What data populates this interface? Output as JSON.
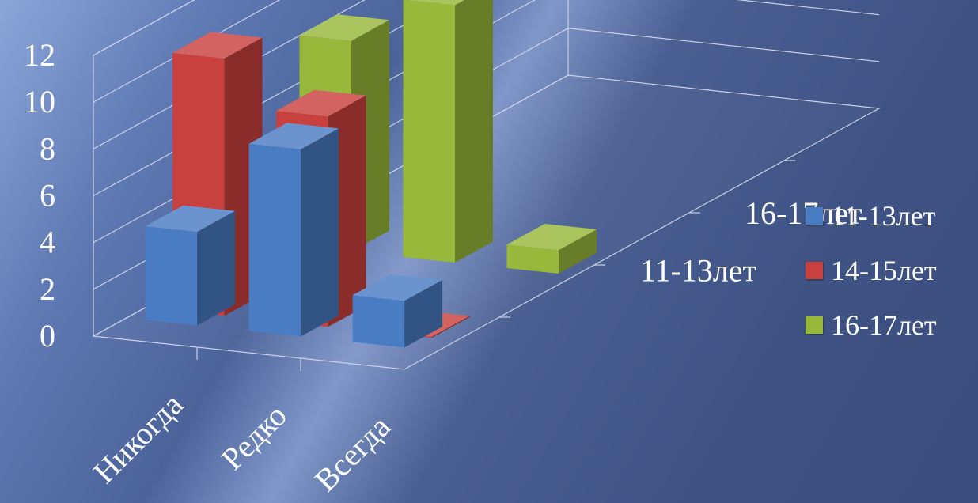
{
  "chart_data": {
    "type": "bar",
    "subtype": "3d-clustered-column",
    "categories": [
      "Никогда",
      "Редко",
      "Всегда"
    ],
    "series": [
      {
        "name": "11-13лет",
        "color": "#4a7cc4",
        "values": [
          4,
          8,
          2
        ]
      },
      {
        "name": "14-15лет",
        "color": "#c9413e",
        "values": [
          11,
          9,
          0
        ]
      },
      {
        "name": "16-17лет",
        "color": "#97b83b",
        "values": [
          9,
          11,
          1
        ]
      }
    ],
    "depth_labels": [
      "11-13лет",
      "16-17лет"
    ],
    "yticks": [
      "0",
      "2",
      "4",
      "6",
      "8",
      "10",
      "12"
    ],
    "ylim": [
      0,
      12
    ],
    "grid": true,
    "legend_position": "right"
  }
}
